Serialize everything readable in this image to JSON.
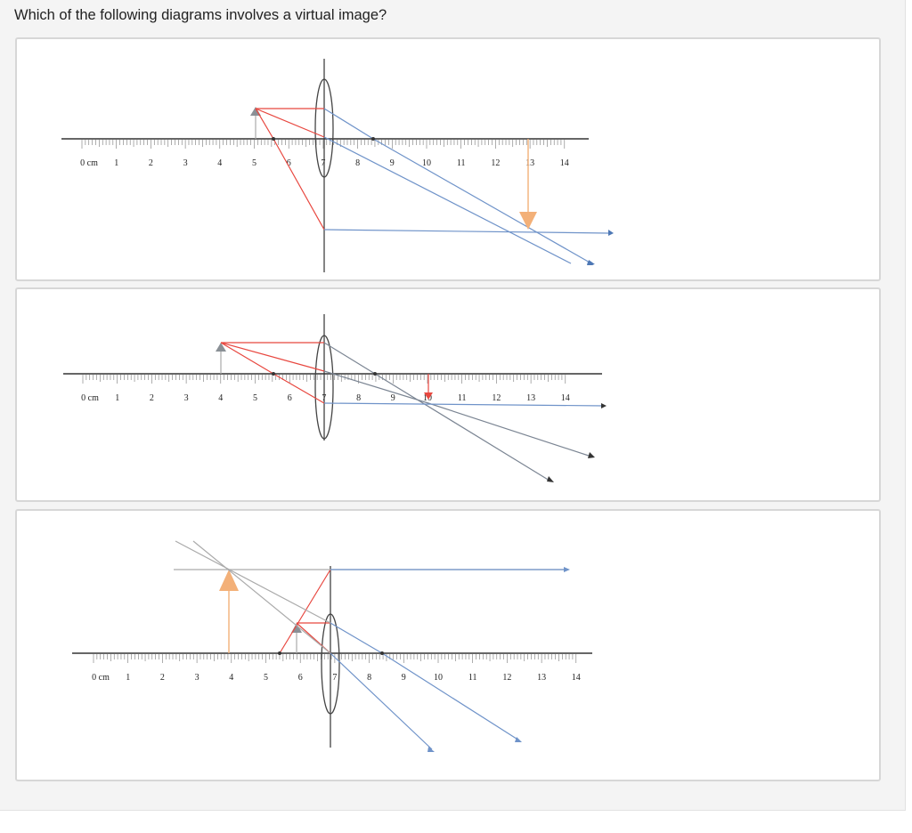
{
  "question": {
    "text": "Which of the following diagrams involves a virtual image?"
  },
  "options": [
    {
      "id": "a",
      "ruler_labels": [
        "0 cm",
        "1",
        "2",
        "3",
        "4",
        "5",
        "6",
        "7",
        "8",
        "9",
        "10",
        "11",
        "12",
        "13",
        "14"
      ]
    },
    {
      "id": "b",
      "ruler_labels": [
        "0 cm",
        "1",
        "2",
        "3",
        "4",
        "5",
        "6",
        "7",
        "8",
        "9",
        "10",
        "11",
        "12",
        "13",
        "14"
      ]
    },
    {
      "id": "c",
      "ruler_labels": [
        "0 cm",
        "1",
        "2",
        "3",
        "4",
        "5",
        "6",
        "7",
        "8",
        "9",
        "10",
        "11",
        "12",
        "13",
        "14"
      ]
    }
  ],
  "colors": {
    "ray_red": "#e8473f",
    "ray_blue": "#6f93c9",
    "image_orange": "#f3b078",
    "object_gray": "#8a9096",
    "ray_gray": "#7b8593"
  }
}
